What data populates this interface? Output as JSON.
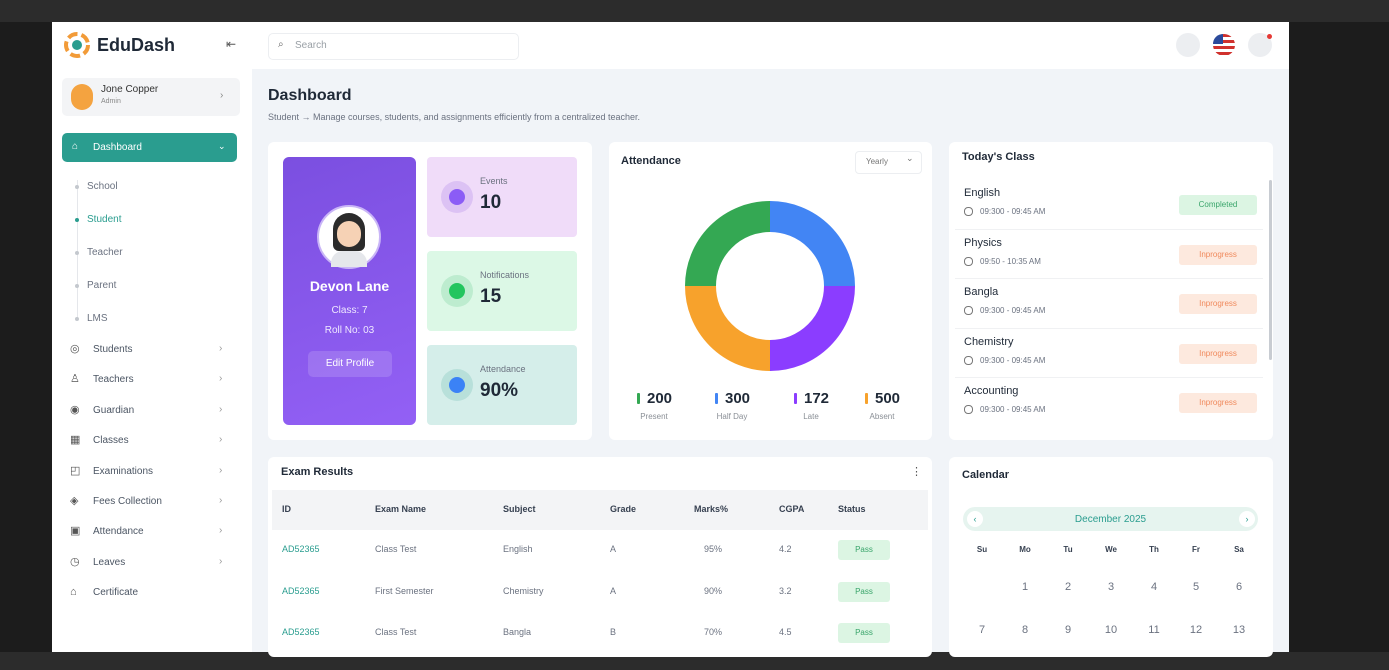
{
  "sidebar": {
    "brand": "EduDash",
    "user": {
      "name": "Jone Copper",
      "role": "Admin"
    },
    "active": "Dashboard",
    "submenu": [
      "School",
      "Student",
      "Teacher",
      "Parent",
      "LMS"
    ],
    "menu": [
      "Students",
      "Teachers",
      "Guardian",
      "Classes",
      "Examinations",
      "Fees Collection",
      "Attendance",
      "Leaves",
      "Certificate"
    ]
  },
  "header": {
    "search_placeholder": "Search"
  },
  "page": {
    "title": "Dashboard",
    "subtitle": "Student → Manage courses, students, and assignments efficiently from a centralized teacher."
  },
  "profile": {
    "name": "Devon Lane",
    "class": "Class: 7",
    "roll": "Roll No: 03",
    "button": "Edit Profile"
  },
  "stats": [
    {
      "label": "Events",
      "value": 10
    },
    {
      "label": "Notifications",
      "value": 15
    },
    {
      "label": "Attendance",
      "value": "90%"
    }
  ],
  "attendance": {
    "title": "Attendance",
    "period": "Yearly",
    "legend": [
      {
        "value": 200,
        "label": "Present"
      },
      {
        "value": 300,
        "label": "Half Day"
      },
      {
        "value": 172,
        "label": "Late"
      },
      {
        "value": 500,
        "label": "Absent"
      }
    ]
  },
  "todays_class": {
    "title": "Today's Class",
    "classes": [
      {
        "subject": "English",
        "time": "09:300 - 09:45 AM",
        "status": "Completed"
      },
      {
        "subject": "Physics",
        "time": "09:50 - 10:35 AM",
        "status": "Inprogress"
      },
      {
        "subject": "Bangla",
        "time": "09:300 - 09:45 AM",
        "status": "Inprogress"
      },
      {
        "subject": "Chemistry",
        "time": "09:300 - 09:45 AM",
        "status": "Inprogress"
      },
      {
        "subject": "Accounting",
        "time": "09:300 - 09:45 AM",
        "status": "Inprogress"
      }
    ]
  },
  "exam_results": {
    "title": "Exam Results",
    "columns": [
      "ID",
      "Exam Name",
      "Subject",
      "Grade",
      "Marks%",
      "CGPA",
      "Status"
    ],
    "rows": [
      [
        "AD52365",
        "Class Test",
        "English",
        "A",
        "95%",
        "4.2",
        "Pass"
      ],
      [
        "AD52365",
        "First Semester",
        "Chemistry",
        "A",
        "90%",
        "3.2",
        "Pass"
      ],
      [
        "AD52365",
        "Class Test",
        "Bangla",
        "B",
        "70%",
        "4.5",
        "Pass"
      ]
    ]
  },
  "calendar": {
    "title": "Calendar",
    "month": "December 2025",
    "weekdays": [
      "Su",
      "Mo",
      "Tu",
      "We",
      "Th",
      "Fr",
      "Sa"
    ],
    "days": [
      1,
      2,
      3,
      4,
      5,
      6,
      7,
      8,
      9,
      10,
      11,
      12,
      13
    ]
  }
}
